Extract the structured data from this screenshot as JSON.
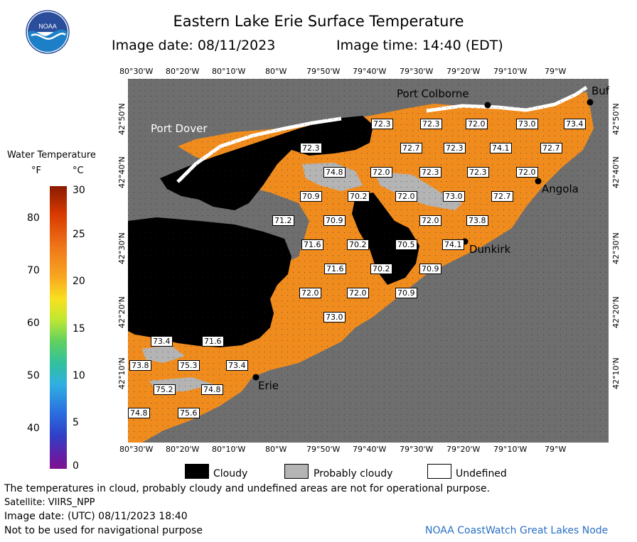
{
  "header": {
    "title": "Eastern Lake Erie Surface Temperature",
    "image_date": "Image date: 08/11/2023",
    "image_time": "Image time: 14:40 (EDT)",
    "logo_text": "NOAA"
  },
  "map": {
    "top_lon_labels": [
      "80°30'W",
      "80°20'W",
      "80°10'W",
      "80°W",
      "79°50'W",
      "79°40'W",
      "79°30'W",
      "79°20'W",
      "79°10'W",
      "79°W"
    ],
    "bottom_lon_labels": [
      "80°30'W",
      "80°20'W",
      "80°10'W",
      "80°W",
      "79°50'W",
      "79°40'W",
      "79°30'W",
      "79°20'W",
      "79°10'W",
      "79°W"
    ],
    "left_lat_labels": [
      "42°50'N",
      "42°40'N",
      "42°30'N",
      "42°20'N",
      "42°10'N"
    ],
    "right_lat_labels": [
      "42°50'N",
      "42°40'N",
      "42°30'N",
      "42°20'N",
      "42°10'N"
    ],
    "cities": [
      "Port Colborne",
      "Buf",
      "Port Dover",
      "Angola",
      "Dunkirk",
      "Erie"
    ],
    "temperature_labels": [
      "72.3",
      "72.3",
      "72.0",
      "73.0",
      "73.4",
      "72.3",
      "72.7",
      "72.3",
      "74.1",
      "72.7",
      "74.8",
      "72.0",
      "72.3",
      "72.3",
      "72.0",
      "70.9",
      "70.2",
      "72.0",
      "73.0",
      "72.7",
      "71.2",
      "70.9",
      "72.0",
      "73.8",
      "71.6",
      "70.2",
      "70.5",
      "74.1",
      "71.6",
      "70.2",
      "70.9",
      "72.0",
      "72.0",
      "70.9",
      "73.0",
      "73.4",
      "71.6",
      "73.8",
      "75.3",
      "73.4",
      "75.2",
      "74.8",
      "74.8",
      "75.6"
    ]
  },
  "colorbar": {
    "title": "Water Temperature",
    "unit_f": "°F",
    "unit_c": "°C",
    "f_ticks": [
      "80",
      "70",
      "60",
      "50",
      "40"
    ],
    "c_ticks": [
      "30",
      "25",
      "20",
      "15",
      "10",
      "5",
      "0"
    ]
  },
  "legend": {
    "cloudy": "Cloudy",
    "probably_cloudy": "Probably cloudy",
    "undefined": "Undefined",
    "colors": {
      "cloudy": "#000000",
      "probably_cloudy": "#b4b4b4",
      "undefined": "#ffffff",
      "land": "#6e6e6e",
      "water": "#f08c1e"
    }
  },
  "footer": {
    "line1": "The temperatures in cloud, probably cloudy and undefined areas are not for operational purpose.",
    "line2": "Satellite: VIIRS_NPP",
    "line3": "Image date: (UTC) 08/11/2023  18:40",
    "line4": "Not to be used for navigational purpose",
    "credit": "NOAA CoastWatch Great Lakes Node"
  }
}
